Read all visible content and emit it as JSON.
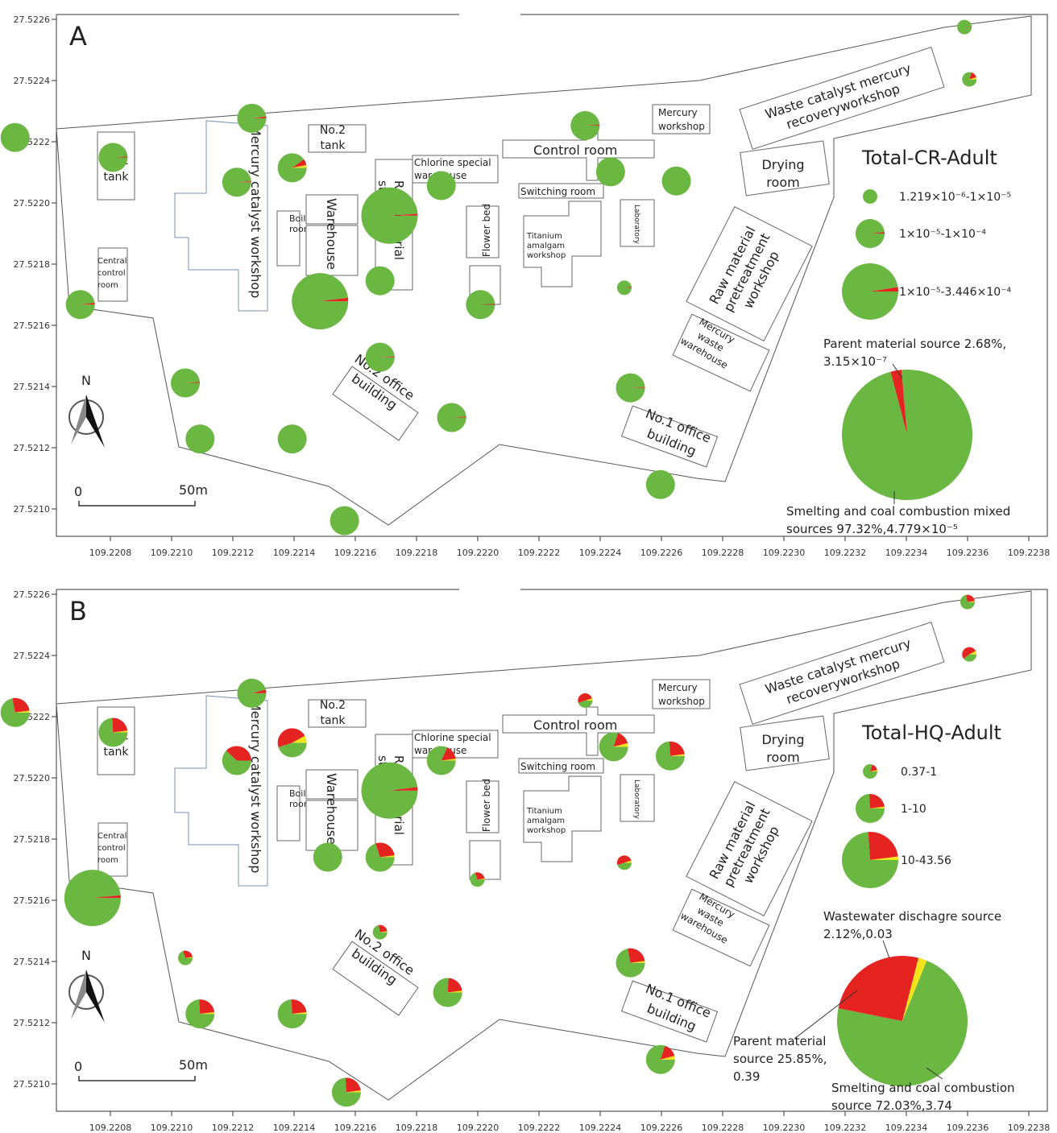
{
  "axes": {
    "x_ticks": [
      "109.2208",
      "109.2210",
      "109.2212",
      "109.2214",
      "109.2216",
      "109.2218",
      "109.2220",
      "109.2222",
      "109.2224",
      "109.2226",
      "109.2228",
      "109.2230",
      "109.2232",
      "109.2234",
      "109.2236",
      "109.2238"
    ],
    "y_ticks": [
      "27.5226",
      "27.5224",
      "27.5222",
      "27.5220",
      "27.5218",
      "27.5216",
      "27.5214",
      "27.5212",
      "27.5210"
    ]
  },
  "labels": {
    "no1_tank": [
      "No.1",
      "tank"
    ],
    "no2_tank": [
      "No.2",
      "tank"
    ],
    "mercury_catalyst": "Mercury catalyst workshop",
    "boiler": [
      "Boiler",
      "room"
    ],
    "warehouse": "Warehouse",
    "raw_storage": [
      "Raw material",
      "storage"
    ],
    "chlorine": [
      "Chlorine special",
      "warehouse"
    ],
    "central_control": [
      "Central",
      "control",
      "room"
    ],
    "mercury_workshop": [
      "Mercury",
      "workshop"
    ],
    "control_room": "Control room",
    "switching_room": "Switching room",
    "titanium": [
      "Titanium",
      "amalgam",
      "workshop"
    ],
    "laboratory": "Laboratory",
    "flower_bed": "Flower bed",
    "waste_catalyst": [
      "Waste catalyst mercury",
      "recoveryworkshop"
    ],
    "drying": [
      "Drying",
      "room"
    ],
    "raw_pretreat": [
      "Raw material",
      "pretreatment",
      "workshop"
    ],
    "mercury_waste": [
      "Mercury",
      "waste",
      "warehouse"
    ],
    "no1_office": [
      "No.1 office",
      "building"
    ],
    "no2_office": [
      "No.2 office",
      "building"
    ],
    "north": "N",
    "scale": [
      "0",
      "50m"
    ]
  },
  "colors": {
    "green": "#6ab741",
    "red": "#e52421",
    "yellow": "#f3e31c",
    "line": "#555555",
    "box": "#666666"
  },
  "panels": [
    {
      "letter": "A",
      "legend_title": "Total-CR-Adult",
      "legend_items": [
        {
          "text": "1.219×10⁻⁶-1×10⁻⁵",
          "r": 9,
          "slices": [
            1.0
          ]
        },
        {
          "text": "1×10⁻⁵-1×10⁻⁴",
          "r": 18,
          "slices": [
            0.985,
            0.015
          ]
        },
        {
          "text": "1×10⁻⁵-3.446×10⁻⁴",
          "r": 35,
          "slices": [
            0.975,
            0.025
          ]
        }
      ],
      "pie_labels": [
        [
          "Parent material source 2.68%,",
          "3.15×10⁻⁷"
        ],
        [
          "Smelting and coal combustion mixed",
          "sources 97.32%,4.779×10⁻⁵"
        ]
      ],
      "big_pie": {
        "r": 81,
        "slices": [
          0.0268,
          0.9732,
          0.0
        ],
        "start": "red"
      },
      "points": [
        {
          "x": 109.220627,
          "y": 27.522215,
          "r": 18,
          "slices": [
            1.0,
            0,
            0
          ]
        },
        {
          "x": 109.220947,
          "y": 27.52215,
          "r": 18,
          "slices": [
            0.99,
            0.01,
            0
          ]
        },
        {
          "x": 109.22084,
          "y": 27.521669,
          "r": 18,
          "slices": [
            0.98,
            0.02,
            0
          ]
        },
        {
          "x": 109.2214,
          "y": 27.522278,
          "r": 18,
          "slices": [
            0.98,
            0.02,
            0
          ]
        },
        {
          "x": 109.221351,
          "y": 27.522069,
          "r": 18,
          "slices": [
            0.99,
            0.01,
            0
          ]
        },
        {
          "x": 109.221532,
          "y": 27.522116,
          "r": 18,
          "slices": [
            0.9,
            0.07,
            0.03
          ]
        },
        {
          "x": 109.221183,
          "y": 27.521413,
          "r": 18,
          "slices": [
            0.99,
            0.01,
            0
          ]
        },
        {
          "x": 109.221231,
          "y": 27.52123,
          "r": 18,
          "slices": [
            1.0,
            0,
            0
          ]
        },
        {
          "x": 109.221532,
          "y": 27.52123,
          "r": 18,
          "slices": [
            1.0,
            0,
            0
          ]
        },
        {
          "x": 109.221623,
          "y": 27.52168,
          "r": 35,
          "slices": [
            0.98,
            0.02,
            0
          ]
        },
        {
          "x": 109.221703,
          "y": 27.520963,
          "r": 18,
          "slices": [
            1.0,
            0,
            0
          ]
        },
        {
          "x": 109.221819,
          "y": 27.521747,
          "r": 18,
          "slices": [
            1.0,
            0,
            0
          ]
        },
        {
          "x": 109.221819,
          "y": 27.521497,
          "r": 18,
          "slices": [
            0.99,
            0.01,
            0
          ]
        },
        {
          "x": 109.22185,
          "y": 27.52196,
          "r": 35,
          "slices": [
            0.99,
            0.01,
            0
          ]
        },
        {
          "x": 109.222019,
          "y": 27.522058,
          "r": 18,
          "slices": [
            1.0,
            0,
            0
          ]
        },
        {
          "x": 109.222053,
          "y": 27.5213,
          "r": 18,
          "slices": [
            0.99,
            0.01,
            0
          ]
        },
        {
          "x": 109.222147,
          "y": 27.521669,
          "r": 18,
          "slices": [
            0.99,
            0.01,
            0
          ]
        },
        {
          "x": 109.222489,
          "y": 27.522254,
          "r": 18,
          "slices": [
            0.99,
            0.01,
            0
          ]
        },
        {
          "x": 109.222572,
          "y": 27.522103,
          "r": 18,
          "slices": [
            1.0,
            0,
            0
          ]
        },
        {
          "x": 109.222617,
          "y": 27.521724,
          "r": 9,
          "slices": [
            0.98,
            0.02,
            0
          ]
        },
        {
          "x": 109.222637,
          "y": 27.521397,
          "r": 18,
          "slices": [
            0.99,
            0.01,
            0
          ]
        },
        {
          "x": 109.222787,
          "y": 27.522073,
          "r": 18,
          "slices": [
            1.0,
            0,
            0
          ]
        },
        {
          "x": 109.222735,
          "y": 27.521081,
          "r": 18,
          "slices": [
            1.0,
            0,
            0
          ]
        },
        {
          "x": 109.223728,
          "y": 27.522576,
          "r": 9,
          "slices": [
            0.99,
            0.01,
            0
          ]
        },
        {
          "x": 109.223744,
          "y": 27.522405,
          "r": 9,
          "slices": [
            0.8,
            0.15,
            0.05
          ]
        }
      ]
    },
    {
      "letter": "B",
      "legend_title": "Total-HQ-Adult",
      "legend_items": [
        {
          "text": "0.37-1",
          "r": 9,
          "slices": [
            0.8,
            0.17,
            0.03
          ]
        },
        {
          "text": "1-10",
          "r": 18,
          "slices": [
            0.74,
            0.24,
            0.02
          ]
        },
        {
          "text": "10-43.56",
          "r": 35,
          "slices": [
            0.74,
            0.24,
            0.02
          ]
        }
      ],
      "pie_labels": [
        [
          "Wastewater dischagre source",
          "2.12%,0.03"
        ],
        [
          "Parent material",
          "source 25.85%,",
          "0.39"
        ],
        [
          "Smelting and coal combustion",
          "source 72.03%,3.74"
        ]
      ],
      "big_pie": {
        "r": 81,
        "slices": [
          0.2585,
          0.0212,
          0.7203
        ],
        "start": "red"
      },
      "points": [
        {
          "x": 109.220627,
          "y": 27.522215,
          "r": 18,
          "slices": [
            0.72,
            0.26,
            0.02
          ]
        },
        {
          "x": 109.220947,
          "y": 27.52215,
          "r": 18,
          "slices": [
            0.74,
            0.24,
            0.02
          ]
        },
        {
          "x": 109.22088,
          "y": 27.521609,
          "r": 35,
          "slices": [
            0.985,
            0.015,
            0
          ]
        },
        {
          "x": 109.2214,
          "y": 27.522278,
          "r": 18,
          "slices": [
            0.96,
            0.04,
            0
          ]
        },
        {
          "x": 109.221351,
          "y": 27.522058,
          "r": 18,
          "slices": [
            0.62,
            0.38,
            0
          ]
        },
        {
          "x": 109.221532,
          "y": 27.522116,
          "r": 18,
          "slices": [
            0.45,
            0.47,
            0.08
          ]
        },
        {
          "x": 109.221183,
          "y": 27.521413,
          "r": 9,
          "slices": [
            0.7,
            0.28,
            0.02
          ]
        },
        {
          "x": 109.221231,
          "y": 27.52123,
          "r": 18,
          "slices": [
            0.74,
            0.24,
            0.02
          ]
        },
        {
          "x": 109.221532,
          "y": 27.52123,
          "r": 18,
          "slices": [
            0.74,
            0.24,
            0.02
          ]
        },
        {
          "x": 109.221648,
          "y": 27.521742,
          "r": 18,
          "slices": [
            1.0,
            0,
            0
          ]
        },
        {
          "x": 109.221709,
          "y": 27.520974,
          "r": 18,
          "slices": [
            0.74,
            0.24,
            0.02
          ]
        },
        {
          "x": 109.221819,
          "y": 27.521742,
          "r": 18,
          "slices": [
            0.7,
            0.28,
            0.02
          ]
        },
        {
          "x": 109.221819,
          "y": 27.521497,
          "r": 9,
          "slices": [
            0.72,
            0.26,
            0.02
          ]
        },
        {
          "x": 109.22185,
          "y": 27.52196,
          "r": 35,
          "slices": [
            0.98,
            0.02,
            0
          ]
        },
        {
          "x": 109.222019,
          "y": 27.522058,
          "r": 18,
          "slices": [
            0.82,
            0.16,
            0.02
          ]
        },
        {
          "x": 109.22204,
          "y": 27.5213,
          "r": 18,
          "slices": [
            0.76,
            0.22,
            0.02
          ]
        },
        {
          "x": 109.222137,
          "y": 27.521669,
          "r": 9,
          "slices": [
            0.7,
            0.28,
            0.02
          ]
        },
        {
          "x": 109.222489,
          "y": 27.522254,
          "r": 9,
          "slices": [
            0.45,
            0.5,
            0.05
          ]
        },
        {
          "x": 109.222582,
          "y": 27.522103,
          "r": 18,
          "slices": [
            0.8,
            0.16,
            0.04
          ]
        },
        {
          "x": 109.222617,
          "y": 27.521724,
          "r": 9,
          "slices": [
            0.45,
            0.5,
            0.05
          ]
        },
        {
          "x": 109.222637,
          "y": 27.521397,
          "r": 18,
          "slices": [
            0.72,
            0.26,
            0.02
          ]
        },
        {
          "x": 109.222767,
          "y": 27.522073,
          "r": 18,
          "slices": [
            0.74,
            0.24,
            0.02
          ]
        },
        {
          "x": 109.222735,
          "y": 27.521081,
          "r": 18,
          "slices": [
            0.8,
            0.16,
            0.04
          ]
        },
        {
          "x": 109.223738,
          "y": 27.522576,
          "r": 9,
          "slices": [
            0.72,
            0.26,
            0.02
          ]
        },
        {
          "x": 109.223744,
          "y": 27.522405,
          "r": 9,
          "slices": [
            0.4,
            0.52,
            0.08
          ]
        }
      ]
    }
  ]
}
